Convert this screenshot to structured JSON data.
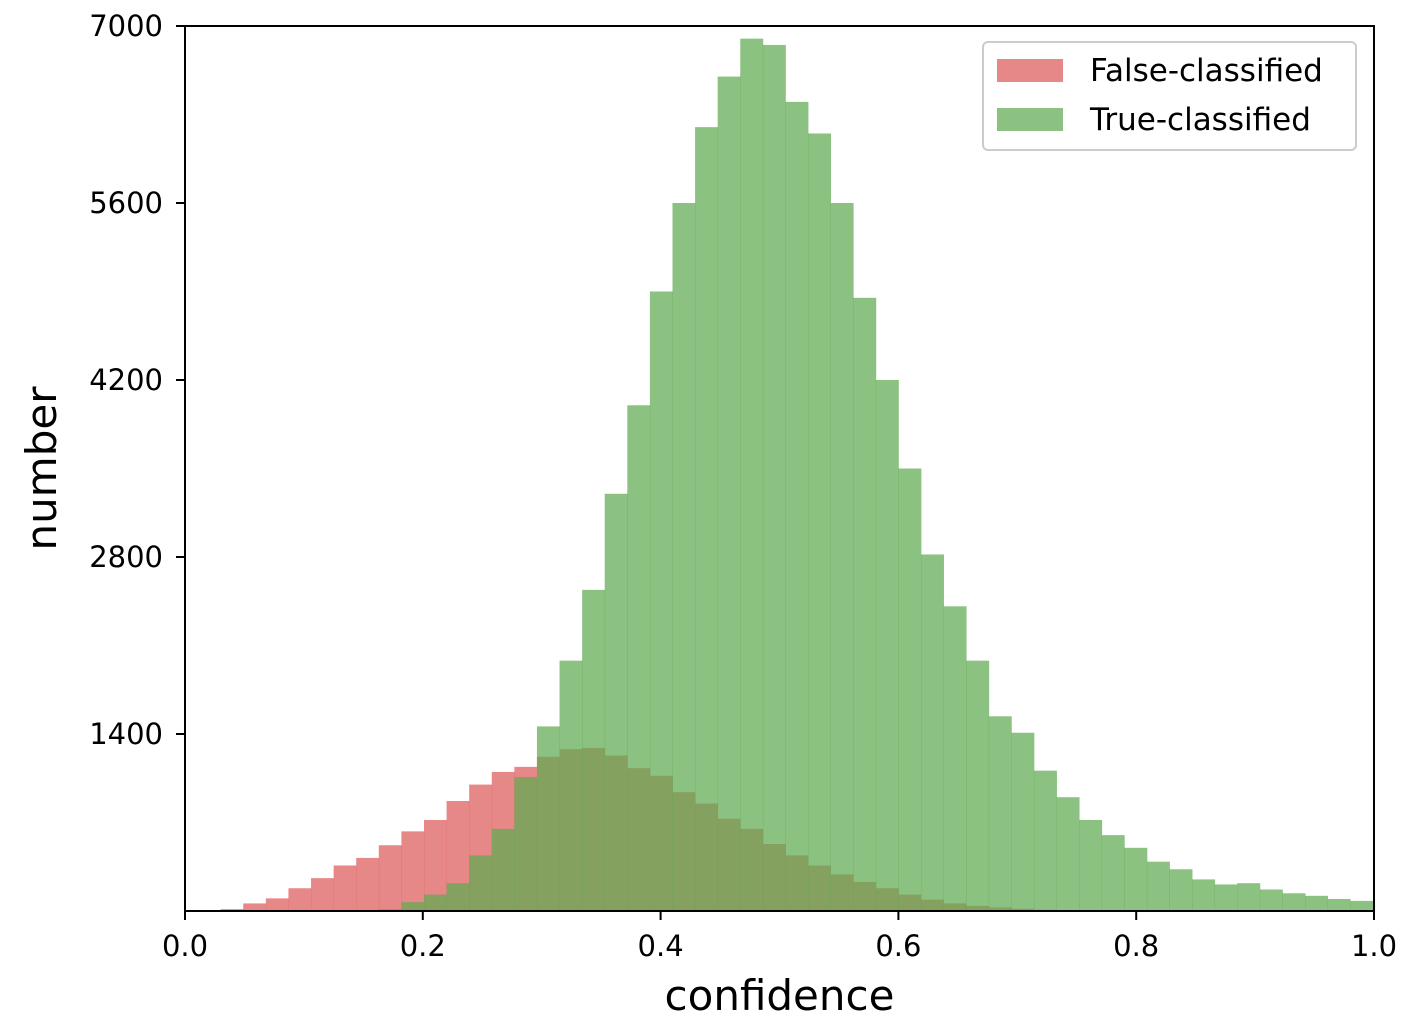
{
  "chart_data": {
    "type": "bar",
    "subtype": "overlapping-histogram",
    "title": "",
    "xlabel": "confidence",
    "ylabel": "number",
    "xlim": [
      0.0,
      1.0
    ],
    "ylim": [
      0,
      7000
    ],
    "bin_width": 0.019,
    "x_ticks": [
      "0.0",
      "0.2",
      "0.4",
      "0.6",
      "0.8",
      "1.0"
    ],
    "y_ticks": [
      "1400",
      "2800",
      "4200",
      "5600",
      "7000"
    ],
    "grid": false,
    "legend_position": "top-right",
    "series": [
      {
        "name": "False-classified",
        "color": "#e06666",
        "opacity": 0.78,
        "bins_start": [
          0.03,
          0.049,
          0.068,
          0.087,
          0.106,
          0.125,
          0.144,
          0.163,
          0.182,
          0.201,
          0.22,
          0.239,
          0.258,
          0.277,
          0.296,
          0.315,
          0.334,
          0.353,
          0.372,
          0.391,
          0.41,
          0.429,
          0.448,
          0.467,
          0.486,
          0.505,
          0.524,
          0.543,
          0.562,
          0.581,
          0.6,
          0.619,
          0.638,
          0.657,
          0.676,
          0.695,
          0.714,
          0.733
        ],
        "values": [
          15,
          60,
          100,
          180,
          260,
          360,
          420,
          520,
          630,
          720,
          870,
          1000,
          1100,
          1140,
          1220,
          1280,
          1290,
          1230,
          1130,
          1070,
          940,
          850,
          730,
          650,
          530,
          440,
          360,
          290,
          230,
          180,
          130,
          90,
          60,
          40,
          28,
          18,
          10,
          5
        ]
      },
      {
        "name": "True-classified",
        "color": "#5faa50",
        "opacity": 0.72,
        "bins_start": [
          0.163,
          0.182,
          0.201,
          0.22,
          0.239,
          0.258,
          0.277,
          0.296,
          0.315,
          0.334,
          0.353,
          0.372,
          0.391,
          0.41,
          0.429,
          0.448,
          0.467,
          0.486,
          0.505,
          0.524,
          0.543,
          0.562,
          0.581,
          0.6,
          0.619,
          0.638,
          0.657,
          0.676,
          0.695,
          0.714,
          0.733,
          0.752,
          0.771,
          0.79,
          0.809,
          0.828,
          0.847,
          0.866,
          0.885,
          0.904,
          0.923,
          0.942,
          0.961,
          0.98
        ],
        "values": [
          15,
          70,
          130,
          220,
          440,
          650,
          1060,
          1460,
          1980,
          2540,
          3300,
          4000,
          4900,
          5600,
          6200,
          6600,
          6900,
          6850,
          6400,
          6150,
          5600,
          4850,
          4200,
          3500,
          2820,
          2410,
          1980,
          1540,
          1410,
          1110,
          900,
          720,
          600,
          500,
          390,
          330,
          250,
          210,
          220,
          170,
          140,
          120,
          95,
          80
        ]
      }
    ]
  }
}
